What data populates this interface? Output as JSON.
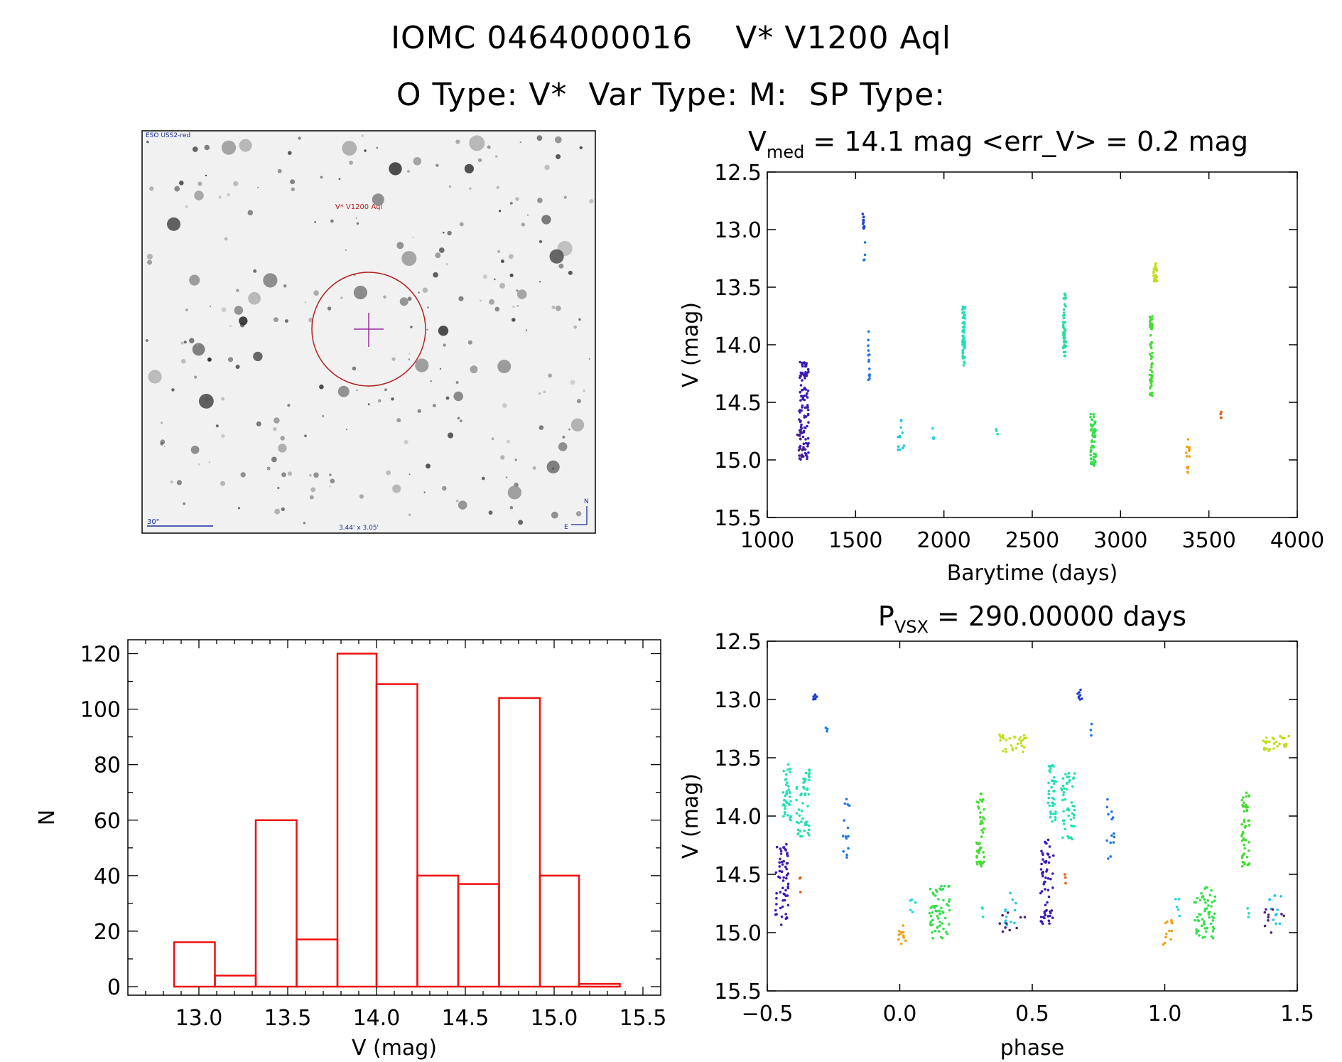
{
  "header": {
    "line1_id": "IOMC 0464000016",
    "line1_name": "V* V1200 Aql",
    "line2": "O Type: V*  Var Type: M:  SP Type:"
  },
  "finder": {
    "survey_label": "ESO USS2-red",
    "target_label": "V* V1200 Aql",
    "scale_label": "30\"",
    "size_label": "3.44' x 3.05'",
    "north_label": "N",
    "east_label": "E"
  },
  "chart_data": [
    {
      "id": "lightcurve",
      "type": "scatter",
      "title_main": "V",
      "title_sub": "med",
      "title_rest": "= 14.1 mag <err_V> = 0.2 mag",
      "xlabel": "Barytime (days)",
      "ylabel": "V (mag)",
      "xlim": [
        1000,
        4000
      ],
      "ylim": [
        15.5,
        12.5
      ],
      "xticks": [
        1000,
        1500,
        2000,
        2500,
        3000,
        3500,
        4000
      ],
      "yticks": [
        "12.5",
        "13.0",
        "13.5",
        "14.0",
        "14.5",
        "15.0",
        "15.5"
      ],
      "groups": [
        {
          "name": "season-1",
          "color": "#3d1bb5",
          "x": [
            1180,
            1235
          ],
          "y": [
            14.15,
            15.0
          ],
          "n": 110
        },
        {
          "name": "season-1-faint",
          "color": "#4a1f7a",
          "x": [
            1170,
            1200
          ],
          "y": [
            14.7,
            14.98
          ],
          "n": 10
        },
        {
          "name": "season-2-bright",
          "color": "#1f3fd0",
          "x": [
            1540,
            1550
          ],
          "y": [
            12.85,
            13.0
          ],
          "n": 12
        },
        {
          "name": "season-2-decline",
          "color": "#1f77e6",
          "x": [
            1545,
            1555
          ],
          "y": [
            13.1,
            13.32
          ],
          "n": 4
        },
        {
          "name": "season-2-late",
          "color": "#1f77e6",
          "x": [
            1570,
            1580
          ],
          "y": [
            13.83,
            14.37
          ],
          "n": 14
        },
        {
          "name": "season-3",
          "color": "#22c8e0",
          "x": [
            1740,
            1775
          ],
          "y": [
            14.65,
            14.95
          ],
          "n": 12
        },
        {
          "name": "season-3b",
          "color": "#22d8d8",
          "x": [
            1935,
            1945
          ],
          "y": [
            14.7,
            14.92
          ],
          "n": 4
        },
        {
          "name": "season-4",
          "color": "#22e0b8",
          "x": [
            2105,
            2120
          ],
          "y": [
            13.62,
            14.18
          ],
          "n": 60
        },
        {
          "name": "season-4b",
          "color": "#22e0b0",
          "x": [
            2295,
            2305
          ],
          "y": [
            14.72,
            14.83
          ],
          "n": 3
        },
        {
          "name": "season-5",
          "color": "#22e09a",
          "x": [
            2675,
            2690
          ],
          "y": [
            13.55,
            14.1
          ],
          "n": 50
        },
        {
          "name": "season-6",
          "color": "#33e04a",
          "x": [
            2830,
            2860
          ],
          "y": [
            14.6,
            15.05
          ],
          "n": 60
        },
        {
          "name": "season-7",
          "color": "#44dd33",
          "x": [
            3165,
            3180
          ],
          "y": [
            13.75,
            14.45
          ],
          "n": 60
        },
        {
          "name": "season-7b",
          "color": "#bfe01a",
          "x": [
            3185,
            3210
          ],
          "y": [
            13.28,
            13.45
          ],
          "n": 25
        },
        {
          "name": "season-8",
          "color": "#f2a114",
          "x": [
            3370,
            3390
          ],
          "y": [
            14.82,
            15.12
          ],
          "n": 14
        },
        {
          "name": "season-9",
          "color": "#e25a12",
          "x": [
            3560,
            3570
          ],
          "y": [
            14.55,
            14.65
          ],
          "n": 4
        }
      ]
    },
    {
      "id": "phased",
      "type": "scatter",
      "title_main": "P",
      "title_sub": "VSX",
      "title_rest": "= 290.00000 days",
      "xlabel": "phase",
      "ylabel": "V (mag)",
      "xlim": [
        -0.5,
        1.5
      ],
      "ylim": [
        15.5,
        12.5
      ],
      "xticks": [
        "−0.5",
        "0.0",
        "0.5",
        "1.0",
        "1.5"
      ],
      "xtick_values": [
        -0.5,
        0.0,
        0.5,
        1.0,
        1.5
      ],
      "yticks": [
        "12.5",
        "13.0",
        "13.5",
        "14.0",
        "14.5",
        "15.0",
        "15.5"
      ],
      "groups": [
        {
          "name": "phase-a",
          "color": "#3d1bb5",
          "x": [
            -0.47,
            -0.42
          ],
          "y": [
            14.2,
            14.95
          ],
          "n": 60
        },
        {
          "name": "phase-b",
          "color": "#22e0b8",
          "x": [
            -0.44,
            -0.41
          ],
          "y": [
            13.55,
            14.05
          ],
          "n": 40
        },
        {
          "name": "phase-c",
          "color": "#22e0b0",
          "x": [
            -0.39,
            -0.34
          ],
          "y": [
            13.6,
            14.2
          ],
          "n": 50
        },
        {
          "name": "phase-d",
          "color": "#e25a12",
          "x": [
            -0.38,
            -0.37
          ],
          "y": [
            14.5,
            14.67
          ],
          "n": 3
        },
        {
          "name": "phase-e",
          "color": "#1f3fd0",
          "x": [
            -0.33,
            -0.31
          ],
          "y": [
            12.9,
            13.0
          ],
          "n": 8
        },
        {
          "name": "phase-f",
          "color": "#1f77e6",
          "x": [
            -0.28,
            -0.27
          ],
          "y": [
            13.18,
            13.32
          ],
          "n": 3
        },
        {
          "name": "phase-g",
          "color": "#1f77e6",
          "x": [
            -0.22,
            -0.19
          ],
          "y": [
            13.83,
            14.37
          ],
          "n": 14
        },
        {
          "name": "phase-h",
          "color": "#f2a114",
          "x": [
            -0.01,
            0.03
          ],
          "y": [
            14.88,
            15.12
          ],
          "n": 12
        },
        {
          "name": "phase-i",
          "color": "#22d8d8",
          "x": [
            0.04,
            0.06
          ],
          "y": [
            14.7,
            14.95
          ],
          "n": 5
        },
        {
          "name": "phase-j",
          "color": "#33e04a",
          "x": [
            0.11,
            0.19
          ],
          "y": [
            14.6,
            15.05
          ],
          "n": 60
        },
        {
          "name": "phase-k",
          "color": "#44dd33",
          "x": [
            0.29,
            0.32
          ],
          "y": [
            13.8,
            14.45
          ],
          "n": 50
        },
        {
          "name": "phase-l",
          "color": "#22e0b0",
          "x": [
            0.31,
            0.33
          ],
          "y": [
            14.75,
            14.88
          ],
          "n": 3
        },
        {
          "name": "phase-m",
          "color": "#bfe01a",
          "x": [
            0.37,
            0.48
          ],
          "y": [
            13.3,
            13.45
          ],
          "n": 30
        },
        {
          "name": "phase-n",
          "color": "#22c8e0",
          "x": [
            0.39,
            0.44
          ],
          "y": [
            14.65,
            14.95
          ],
          "n": 12
        },
        {
          "name": "phase-o",
          "color": "#4a1f7a",
          "x": [
            0.37,
            0.49
          ],
          "y": [
            14.8,
            15.0
          ],
          "n": 10
        },
        {
          "name": "phase-p",
          "color": "#3d1bb5",
          "x": [
            0.53,
            0.58
          ],
          "y": [
            14.2,
            14.95
          ],
          "n": 60
        },
        {
          "name": "phase-q",
          "color": "#22e0b8",
          "x": [
            0.56,
            0.59
          ],
          "y": [
            13.55,
            14.05
          ],
          "n": 40
        },
        {
          "name": "phase-r",
          "color": "#22e0b0",
          "x": [
            0.61,
            0.66
          ],
          "y": [
            13.6,
            14.2
          ],
          "n": 50
        },
        {
          "name": "phase-s",
          "color": "#e25a12",
          "x": [
            0.62,
            0.63
          ],
          "y": [
            14.5,
            14.67
          ],
          "n": 3
        },
        {
          "name": "phase-t",
          "color": "#1f3fd0",
          "x": [
            0.67,
            0.69
          ],
          "y": [
            12.9,
            13.0
          ],
          "n": 8
        },
        {
          "name": "phase-u",
          "color": "#1f77e6",
          "x": [
            0.72,
            0.73
          ],
          "y": [
            13.18,
            13.32
          ],
          "n": 3
        },
        {
          "name": "phase-v",
          "color": "#1f77e6",
          "x": [
            0.78,
            0.81
          ],
          "y": [
            13.83,
            14.37
          ],
          "n": 14
        },
        {
          "name": "phase-w",
          "color": "#f2a114",
          "x": [
            0.99,
            1.03
          ],
          "y": [
            14.88,
            15.12
          ],
          "n": 12
        },
        {
          "name": "phase-x",
          "color": "#22d8d8",
          "x": [
            1.04,
            1.06
          ],
          "y": [
            14.7,
            14.95
          ],
          "n": 5
        },
        {
          "name": "phase-y",
          "color": "#33e04a",
          "x": [
            1.11,
            1.19
          ],
          "y": [
            14.6,
            15.05
          ],
          "n": 60
        },
        {
          "name": "phase-z",
          "color": "#44dd33",
          "x": [
            1.29,
            1.32
          ],
          "y": [
            13.8,
            14.45
          ],
          "n": 50
        },
        {
          "name": "phase-aa",
          "color": "#22e0b0",
          "x": [
            1.31,
            1.33
          ],
          "y": [
            14.75,
            14.88
          ],
          "n": 3
        },
        {
          "name": "phase-ab",
          "color": "#bfe01a",
          "x": [
            1.37,
            1.48
          ],
          "y": [
            13.3,
            13.45
          ],
          "n": 30
        },
        {
          "name": "phase-ac",
          "color": "#22c8e0",
          "x": [
            1.39,
            1.44
          ],
          "y": [
            14.65,
            14.95
          ],
          "n": 12
        },
        {
          "name": "phase-ad",
          "color": "#4a1f7a",
          "x": [
            1.37,
            1.49
          ],
          "y": [
            14.8,
            15.0
          ],
          "n": 10
        }
      ]
    },
    {
      "id": "histogram",
      "type": "bar",
      "xlabel": "V (mag)",
      "ylabel": "N",
      "xlim": [
        12.6,
        15.6
      ],
      "ylim": [
        0,
        125
      ],
      "xticks": [
        "13.0",
        "13.5",
        "14.0",
        "14.5",
        "15.0",
        "15.5"
      ],
      "xtick_values": [
        13.0,
        13.5,
        14.0,
        14.5,
        15.0,
        15.5
      ],
      "yticks": [
        "0",
        "20",
        "40",
        "60",
        "80",
        "100",
        "120"
      ],
      "ytick_values": [
        0,
        20,
        40,
        60,
        80,
        100,
        120
      ],
      "bin_edges": [
        12.86,
        13.09,
        13.32,
        13.55,
        13.78,
        14.0,
        14.23,
        14.46,
        14.69,
        14.92,
        15.14,
        15.37
      ],
      "values": [
        16,
        4,
        60,
        17,
        120,
        109,
        40,
        37,
        104,
        40,
        1
      ],
      "color": "#ee1111"
    }
  ]
}
